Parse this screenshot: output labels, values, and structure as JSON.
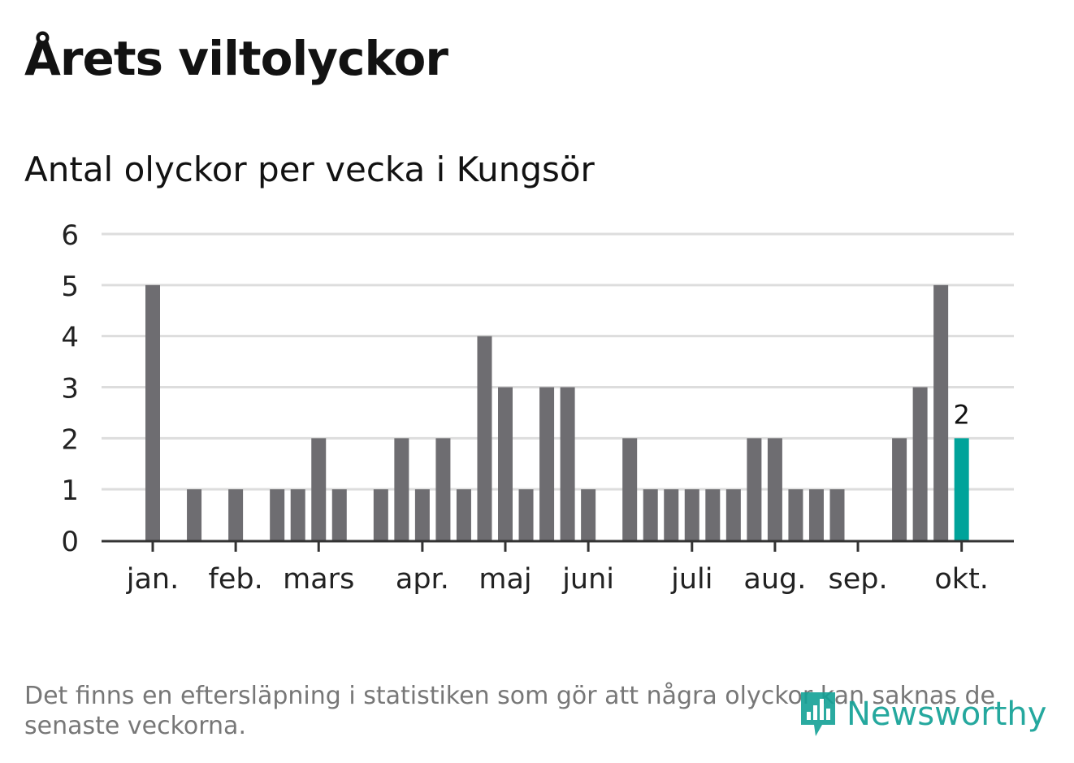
{
  "title": "Årets viltolyckor",
  "subtitle": "Antal olyckor per vecka i Kungsör",
  "footnote": "Det finns en eftersläpning i statistiken som gör att några olyckor kan saknas de senaste veckorna.",
  "logo": {
    "text": "Newsworthy",
    "icon": "chart-bubble-icon"
  },
  "colors": {
    "bar": "#6e6d71",
    "highlight": "#00a39a",
    "grid": "#dddddd",
    "axis": "#333333",
    "text": "#222222"
  },
  "chart_data": {
    "type": "bar",
    "ylim": [
      0,
      6
    ],
    "yticks": [
      0,
      1,
      2,
      3,
      4,
      5,
      6
    ],
    "grid": true,
    "values": [
      5,
      0,
      1,
      0,
      1,
      0,
      1,
      1,
      2,
      1,
      0,
      1,
      2,
      1,
      2,
      1,
      4,
      3,
      1,
      3,
      3,
      1,
      0,
      2,
      1,
      1,
      1,
      1,
      1,
      2,
      2,
      1,
      1,
      1,
      0,
      0,
      2,
      3,
      5,
      2
    ],
    "highlight_index": 39,
    "highlight_label": "2",
    "month_ticks": [
      {
        "label": "jan.",
        "week": 0
      },
      {
        "label": "feb.",
        "week": 4
      },
      {
        "label": "mars",
        "week": 8
      },
      {
        "label": "apr.",
        "week": 13
      },
      {
        "label": "maj",
        "week": 17
      },
      {
        "label": "juni",
        "week": 21
      },
      {
        "label": "juli",
        "week": 26
      },
      {
        "label": "aug.",
        "week": 30
      },
      {
        "label": "sep.",
        "week": 34
      },
      {
        "label": "okt.",
        "week": 39
      }
    ]
  }
}
